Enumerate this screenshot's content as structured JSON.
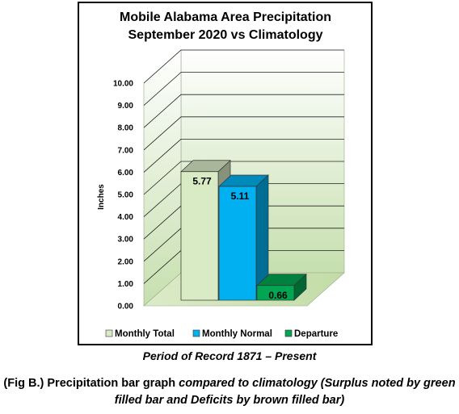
{
  "chart_data": {
    "type": "bar",
    "title": "Mobile Alabama Area Precipitation",
    "subtitle": "September 2020 vs Climatology",
    "ylabel": "Inches",
    "xlabel": "",
    "ylim": [
      0,
      10
    ],
    "yticks": [
      "0.00",
      "1.00",
      "2.00",
      "3.00",
      "4.00",
      "5.00",
      "6.00",
      "7.00",
      "8.00",
      "9.00",
      "10.00"
    ],
    "grid": true,
    "legend_position": "bottom",
    "series": [
      {
        "name": "Monthly Total",
        "value": 5.77,
        "label": "5.77",
        "color": "#d8ebc4"
      },
      {
        "name": "Monthly Normal",
        "value": 5.11,
        "label": "5.11",
        "color": "#00b0f0"
      },
      {
        "name": "Departure",
        "value": 0.66,
        "label": "0.66",
        "color": "#00a651"
      }
    ]
  },
  "footer": {
    "period": "Period of Record 1871 – Present",
    "caption_part1": "(Fig B.) Precipitation bar graph ",
    "caption_part2": "compared to climatology (Surplus noted by green filled bar and Deficits by brown filled bar)"
  }
}
